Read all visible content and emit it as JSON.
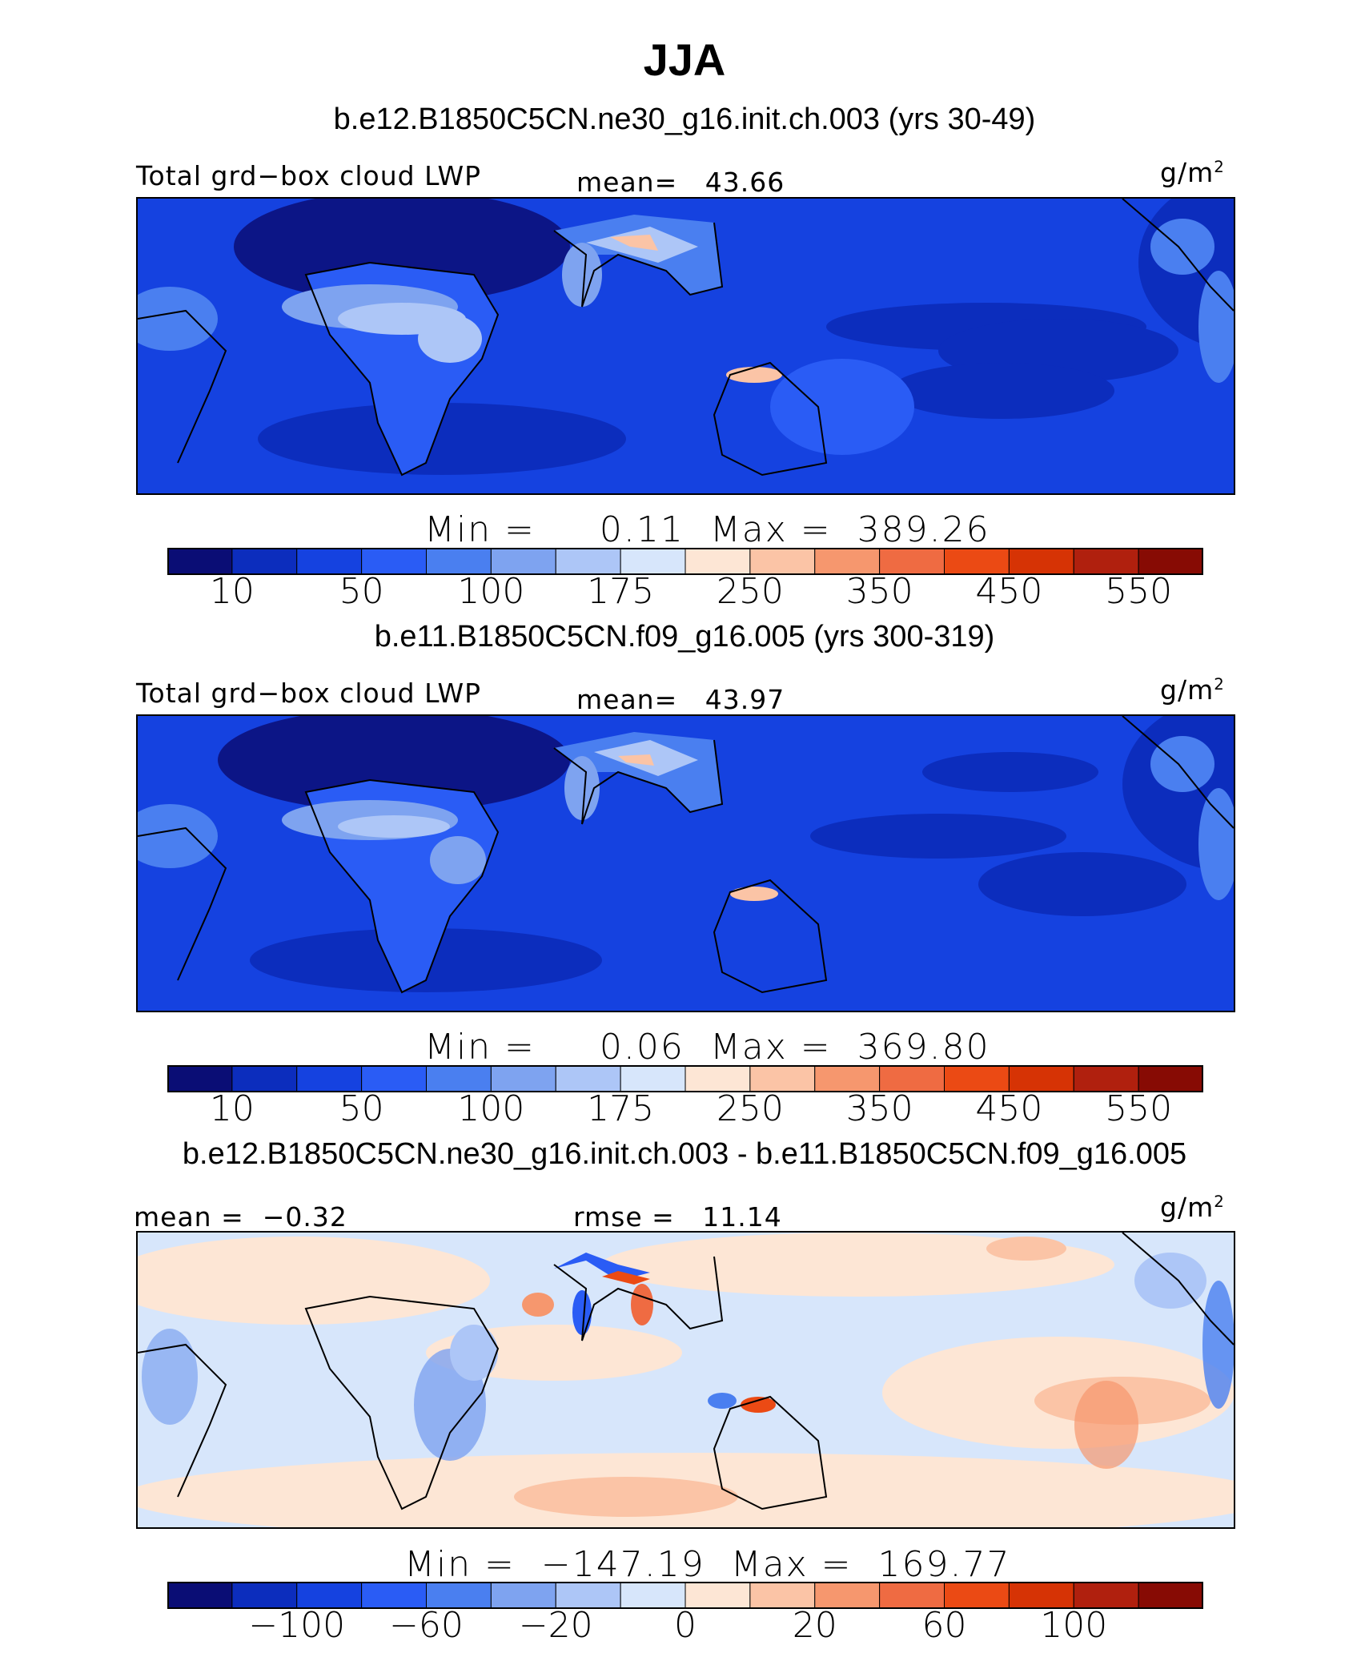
{
  "title": "JJA",
  "colorbar_colors": [
    "#0a0d75",
    "#0c2dbd",
    "#1542e0",
    "#2a5cf5",
    "#4a7ff0",
    "#7ea3f0",
    "#adc6f7",
    "#d7e6fb",
    "#fde6d5",
    "#fbc4a6",
    "#f6976e",
    "#ef6b42",
    "#eb4a14",
    "#d63305",
    "#b0200e",
    "#870b04"
  ],
  "chart_data": [
    {
      "type": "heatmap",
      "subtitle": "b.e12.B1850C5CN.ne30_g16.init.ch.003 (yrs 30-49)",
      "left_label": "Total grd−box cloud LWP",
      "center_label": "mean=",
      "center_value": "43.66",
      "units": "g/m",
      "units_sup": "2",
      "min_label": "Min  =",
      "min_value": "0.11",
      "max_label": "Max  =",
      "max_value": "389.26",
      "min": 0.11,
      "max": 389.26,
      "mean": 43.66,
      "colorbar_ticks": [
        "10",
        "50",
        "100",
        "175",
        "250",
        "350",
        "450",
        "550"
      ]
    },
    {
      "type": "heatmap",
      "subtitle": "b.e11.B1850C5CN.f09_g16.005 (yrs 300-319)",
      "left_label": "Total grd−box cloud LWP",
      "center_label": "mean=",
      "center_value": "43.97",
      "units": "g/m",
      "units_sup": "2",
      "min_label": "Min  =",
      "min_value": "0.06",
      "max_label": "Max  =",
      "max_value": "369.80",
      "min": 0.06,
      "max": 369.8,
      "mean": 43.97,
      "colorbar_ticks": [
        "10",
        "50",
        "100",
        "175",
        "250",
        "350",
        "450",
        "550"
      ]
    },
    {
      "type": "heatmap",
      "subtitle": "b.e12.B1850C5CN.ne30_g16.init.ch.003 - b.e11.B1850C5CN.f09_g16.005",
      "left_label": "mean =",
      "left_value": "−0.32",
      "center_label": "rmse =",
      "center_value": "11.14",
      "units": "g/m",
      "units_sup": "2",
      "min_label": "Min  =",
      "min_value": "−147.19",
      "max_label": "Max  =",
      "max_value": "169.77",
      "min": -147.19,
      "max": 169.77,
      "mean": -0.32,
      "rmse": 11.14,
      "colorbar_ticks": [
        "−100",
        "−60",
        "−20",
        "0",
        "20",
        "60",
        "100"
      ]
    }
  ]
}
